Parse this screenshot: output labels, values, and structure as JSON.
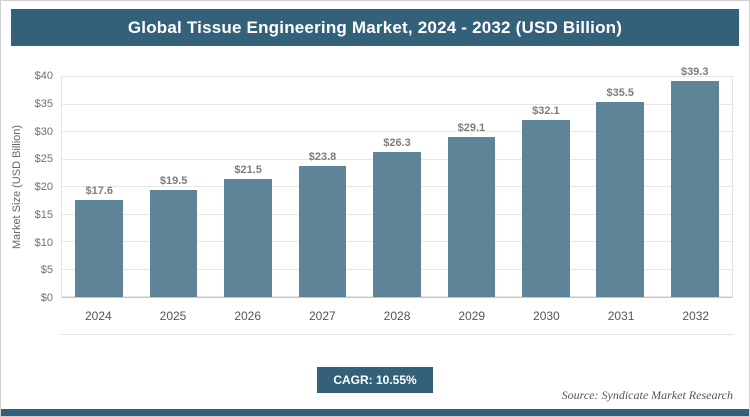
{
  "header": {
    "title": "Global Tissue Engineering Market, 2024 - 2032 (USD Billion)"
  },
  "chart_data": {
    "type": "bar",
    "title": "Global Tissue Engineering Market, 2024 - 2032 (USD Billion)",
    "categories": [
      "2024",
      "2025",
      "2026",
      "2027",
      "2028",
      "2029",
      "2030",
      "2031",
      "2032"
    ],
    "values": [
      17.6,
      19.5,
      21.5,
      23.8,
      26.3,
      29.1,
      32.1,
      35.5,
      39.3
    ],
    "value_labels": [
      "$17.6",
      "$19.5",
      "$21.5",
      "$23.8",
      "$26.3",
      "$29.1",
      "$32.1",
      "$35.5",
      "$39.3"
    ],
    "xlabel": "",
    "ylabel": "Market Size (USD Billion)",
    "ylim": [
      0,
      40
    ],
    "ytick_step": 5,
    "ytick_labels": [
      "$0",
      "$5",
      "$10",
      "$15",
      "$20",
      "$25",
      "$30",
      "$35",
      "$40"
    ],
    "grid": true,
    "legend": "none",
    "bar_color": "#5e8497"
  },
  "footer": {
    "cagr_label": "CAGR: 10.55%",
    "source": "Source: Syndicate Market Research"
  },
  "colors": {
    "accent": "#33617a",
    "bar": "#5e8497",
    "gridline": "#e6e6e6"
  }
}
